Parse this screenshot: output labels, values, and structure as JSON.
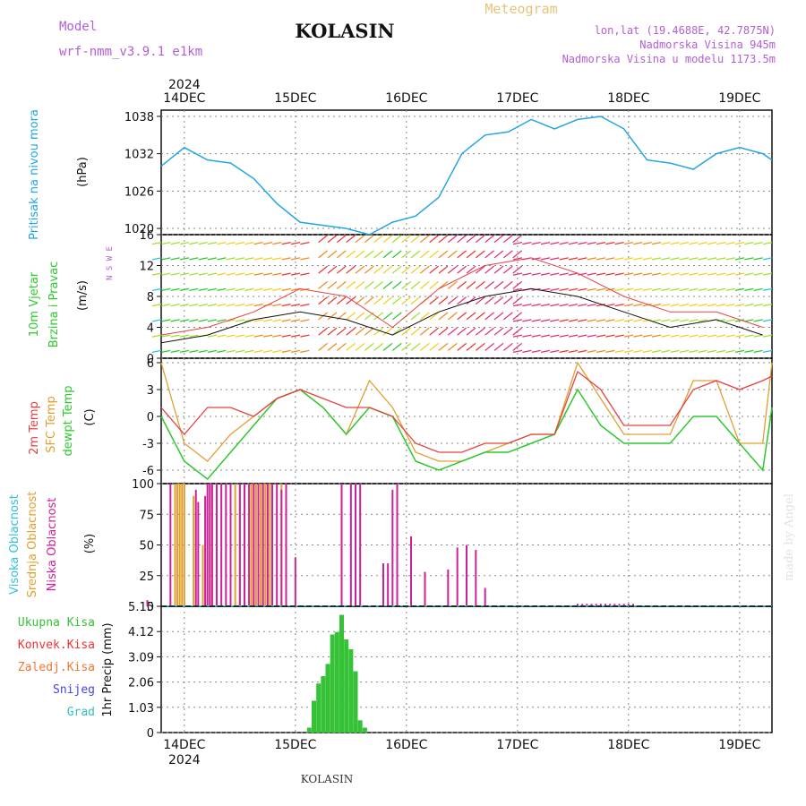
{
  "header": {
    "model_label": "Model",
    "model_name": "wrf-nmm_v3.9.1  e1km",
    "station": "KOLASIN",
    "product": "Meteogram",
    "lonlat": "lon,lat (19.4688E, 42.7875N)",
    "elevation": "Nadmorska Visina 945m",
    "model_elevation": "Nadmorska Visina u modelu 1173.5m",
    "footer_station": "KOLASIN",
    "watermark": "made by Angel"
  },
  "colors": {
    "pressure": "#22a5e5",
    "temp2m": "#e84040",
    "sfc": "#e0a030",
    "dewpt": "#2ec82e",
    "high_cloud": "#30c0e0",
    "mid_cloud": "#e0a030",
    "low_cloud": "#cc2299",
    "total_precip": "#36c236",
    "conv_precip": "#ee3333",
    "frz_precip": "#ee7733",
    "snow": "#4444dd",
    "hail": "#30c0c0",
    "title": "#111111",
    "model": "#b35ed6",
    "meteogram": "#e6c27a"
  },
  "chart_data": [
    {
      "type": "line",
      "panel": "pressure",
      "ylabel_left": "Pritisak na nivou mora",
      "unit": "(hPa)",
      "ylim": [
        1019,
        1039
      ],
      "yticks": [
        "1020",
        "1026",
        "1032",
        "1038"
      ],
      "x_unit": "hours since 14DEC 00Z",
      "xticks": [
        "14DEC",
        "15DEC",
        "16DEC",
        "17DEC",
        "18DEC",
        "19DEC"
      ],
      "year_label": "2024",
      "grid": true,
      "series": [
        {
          "values_x": [
            -5,
            0,
            5,
            10,
            15,
            20,
            25,
            30,
            35,
            40,
            45,
            50,
            55,
            60,
            65,
            70,
            75,
            80,
            85,
            90,
            95,
            100,
            105,
            110,
            115,
            120,
            125,
            127
          ],
          "values": [
            1030,
            1033,
            1031,
            1030.5,
            1028,
            1024,
            1021,
            1020.5,
            1020,
            1019,
            1021,
            1022,
            1025,
            1032,
            1035,
            1035.5,
            1037.5,
            1036,
            1037.5,
            1038,
            1036,
            1031,
            1030.5,
            1029.5,
            1032,
            1033,
            1032,
            1031
          ]
        }
      ]
    },
    {
      "type": "line",
      "panel": "wind",
      "ylabel_left": "10m Vjetar Brzina i Pravac",
      "unit": "(m/s)",
      "compass": "N S W E",
      "ylim": [
        0,
        16
      ],
      "yticks": [
        "0",
        "4",
        "8",
        "12",
        "16"
      ],
      "grid": true,
      "series": [
        {
          "values_x": [
            -5,
            5,
            15,
            25,
            35,
            45,
            55,
            65,
            75,
            85,
            95,
            105,
            115,
            125
          ],
          "values": [
            2,
            3,
            5,
            6,
            5,
            3,
            6,
            8,
            9,
            8,
            6,
            4,
            5,
            3
          ]
        },
        {
          "values_x": [
            -5,
            5,
            15,
            25,
            35,
            45,
            55,
            65,
            75,
            85,
            95,
            105,
            115,
            125
          ],
          "values": [
            3,
            4,
            6,
            9,
            8,
            4,
            9,
            12,
            13,
            11,
            8,
            6,
            6,
            4
          ]
        }
      ]
    },
    {
      "type": "line",
      "panel": "temperature",
      "ylabel_left": "2m Temp SFC Temp dewpt Temp",
      "unit": "(C)",
      "ylim": [
        -7.5,
        6.5
      ],
      "yticks": [
        "-6",
        "-3",
        "0",
        "3",
        "6"
      ],
      "grid": true,
      "series": [
        {
          "name": "2m Temp",
          "values_x": [
            -5,
            0,
            5,
            10,
            15,
            20,
            25,
            30,
            35,
            40,
            45,
            50,
            55,
            60,
            65,
            70,
            75,
            80,
            85,
            90,
            95,
            100,
            105,
            110,
            115,
            120,
            125,
            127
          ],
          "values": [
            1,
            -2,
            1,
            1,
            0,
            2,
            3,
            2,
            1,
            1,
            0,
            -3,
            -4,
            -4,
            -3,
            -3,
            -2,
            -2,
            5,
            3,
            -1,
            -1,
            -1,
            3,
            4,
            3,
            4,
            4.5
          ]
        },
        {
          "name": "SFC Temp",
          "values_x": [
            -5,
            0,
            5,
            10,
            15,
            20,
            25,
            30,
            35,
            40,
            45,
            50,
            55,
            60,
            65,
            70,
            75,
            80,
            85,
            90,
            95,
            100,
            105,
            110,
            115,
            120,
            125,
            127
          ],
          "values": [
            6,
            -3,
            -5,
            -2,
            0,
            2,
            3,
            1,
            -2,
            4,
            1,
            -4,
            -5,
            -5,
            -4,
            -3,
            -2,
            -2,
            6,
            2,
            -2,
            -2,
            -2,
            4,
            4,
            -3,
            -3,
            6
          ]
        },
        {
          "name": "dewpt Temp",
          "values_x": [
            -5,
            0,
            5,
            10,
            15,
            20,
            25,
            30,
            35,
            40,
            45,
            50,
            55,
            60,
            65,
            70,
            75,
            80,
            85,
            90,
            95,
            100,
            105,
            110,
            115,
            120,
            125,
            127
          ],
          "values": [
            0,
            -5,
            -7,
            -4,
            -1,
            2,
            3,
            1,
            -2,
            1,
            0,
            -5,
            -6,
            -5,
            -4,
            -4,
            -3,
            -2,
            3,
            -1,
            -3,
            -3,
            -3,
            0,
            0,
            -3,
            -6,
            1
          ]
        }
      ]
    },
    {
      "type": "bar",
      "panel": "clouds",
      "ylabel_left": "Visoka Oblacnost Srednja Oblacnost Niska Oblacnost",
      "unit": "(%)",
      "ylim": [
        0,
        100
      ],
      "yticks": [
        "0",
        "25",
        "50",
        "75",
        "100"
      ],
      "grid": true,
      "series": [
        {
          "name": "Srednja Oblacnost",
          "x": [
            -2,
            -1.5,
            -1,
            -0.5,
            0,
            2,
            4,
            6,
            10,
            11,
            12,
            13,
            14,
            14.5,
            15,
            15.5,
            16,
            16.5,
            17,
            17.5,
            18,
            18.5,
            19,
            21
          ],
          "values": [
            100,
            100,
            100,
            100,
            100,
            90,
            50,
            100,
            100,
            100,
            100,
            100,
            100,
            100,
            100,
            100,
            100,
            100,
            100,
            100,
            100,
            100,
            100,
            100
          ]
        },
        {
          "name": "Niska Oblacnost",
          "x": [
            -8,
            -3,
            2.5,
            3,
            4.5,
            5,
            5.5,
            6,
            7,
            8,
            9,
            10,
            12,
            13,
            14,
            15,
            16,
            17,
            18,
            19,
            20,
            21,
            22,
            24,
            34,
            36,
            37,
            38,
            43,
            44,
            45,
            46,
            49,
            52,
            57,
            59,
            61,
            63,
            65,
            85,
            86,
            87,
            88,
            89,
            90,
            91,
            92,
            93,
            94,
            95,
            96,
            97
          ],
          "values": [
            5,
            100,
            95,
            85,
            90,
            100,
            100,
            100,
            100,
            100,
            100,
            100,
            100,
            100,
            100,
            100,
            100,
            100,
            100,
            100,
            100,
            95,
            100,
            40,
            100,
            100,
            100,
            100,
            35,
            35,
            95,
            100,
            57,
            28,
            30,
            48,
            50,
            46,
            15,
            2,
            2,
            2,
            2,
            2,
            2,
            2,
            2,
            2,
            2,
            2,
            2,
            2
          ]
        }
      ]
    },
    {
      "type": "bar",
      "panel": "precipitation",
      "legend": [
        "Ukupna Kisa",
        "Konvek.Kisa",
        "Zaledj.Kisa",
        "Snijeg",
        "Grad"
      ],
      "unit": "1hr Precip (mm)",
      "ylim": [
        0,
        5.15
      ],
      "yticks": [
        "0",
        "1.03",
        "2.06",
        "3.09",
        "4.12",
        "5.15"
      ],
      "grid": true,
      "series": [
        {
          "name": "Ukupna Kisa",
          "x": [
            27,
            28,
            29,
            30,
            31,
            32,
            33,
            34,
            35,
            36,
            37,
            38,
            39
          ],
          "values": [
            0.2,
            1.3,
            2.0,
            2.3,
            2.8,
            4.0,
            4.1,
            4.8,
            3.8,
            3.4,
            2.5,
            0.5,
            0.2
          ]
        }
      ]
    }
  ]
}
